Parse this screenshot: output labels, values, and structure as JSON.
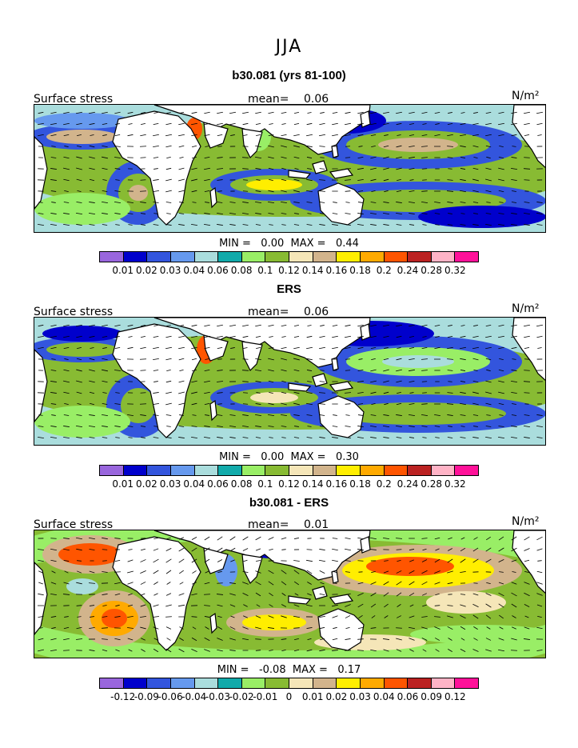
{
  "season_title": "JJA",
  "colors": {
    "land": "#ffffff",
    "coast": "#000000",
    "arrow": "#000000",
    "palette": [
      "#9966dd",
      "#0000cc",
      "#3355dd",
      "#6699ee",
      "#aadddd",
      "#11aaaa",
      "#99ee66",
      "#88bb33",
      "#f5e6b8",
      "#d2b48c",
      "#ffee00",
      "#ffaa00",
      "#ff5500",
      "#bb2222",
      "#ffb3c6",
      "#ff1199"
    ]
  },
  "panels": [
    {
      "title": "b30.081 (yrs 81-100)",
      "variable": "Surface stress",
      "mean_label": "mean=",
      "mean": "0.06",
      "units": "N/m²",
      "min_label": "MIN =",
      "min": "0.00",
      "max_label": "MAX =",
      "max": "0.44",
      "colorbar_labels": [
        "0.01",
        "0.02",
        "0.03",
        "0.04",
        "0.06",
        "0.08",
        "0.1",
        "0.12",
        "0.14",
        "0.16",
        "0.18",
        "0.2",
        "0.24",
        "0.28",
        "0.32"
      ]
    },
    {
      "title": "ERS",
      "variable": "Surface stress",
      "mean_label": "mean=",
      "mean": "0.06",
      "units": "N/m²",
      "min_label": "MIN =",
      "min": "0.00",
      "max_label": "MAX =",
      "max": "0.30",
      "colorbar_labels": [
        "0.01",
        "0.02",
        "0.03",
        "0.04",
        "0.06",
        "0.08",
        "0.1",
        "0.12",
        "0.14",
        "0.16",
        "0.18",
        "0.2",
        "0.24",
        "0.28",
        "0.32"
      ]
    },
    {
      "title": "b30.081 - ERS",
      "variable": "Surface stress",
      "mean_label": "mean=",
      "mean": "0.01",
      "units": "N/m²",
      "min_label": "MIN =",
      "min": "-0.08",
      "max_label": "MAX =",
      "max": "0.17",
      "colorbar_labels": [
        "-0.12",
        "-0.09",
        "-0.06",
        "-0.04",
        "-0.03",
        "-0.02",
        "-0.01",
        "0",
        "0.01",
        "0.02",
        "0.03",
        "0.04",
        "0.06",
        "0.09",
        "0.12"
      ]
    }
  ]
}
